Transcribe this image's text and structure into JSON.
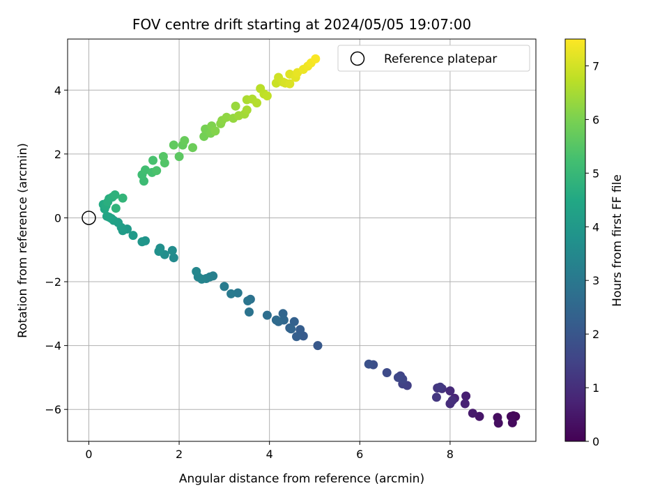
{
  "chart_data": {
    "type": "scatter",
    "title": "FOV centre drift starting at 2024/05/05 19:07:00",
    "xlabel": "Angular distance from reference (arcmin)",
    "ylabel": "Rotation from reference (arcmin)",
    "xlim": [
      -0.47,
      9.9
    ],
    "ylim": [
      -7.0,
      5.6
    ],
    "xticks": [
      0,
      2,
      4,
      6,
      8
    ],
    "yticks": [
      -6,
      -4,
      -2,
      0,
      2,
      4
    ],
    "grid": true,
    "legend": {
      "position": "top-right",
      "entries": [
        "Reference platepar"
      ]
    },
    "reference_point": {
      "label": "Reference platepar",
      "x": 0,
      "y": 0
    },
    "colorbar": {
      "label": "Hours from first FF file",
      "colormap": "viridis",
      "range": [
        0,
        7.5
      ],
      "ticks": [
        0,
        1,
        2,
        3,
        4,
        5,
        6,
        7
      ]
    },
    "series": [
      {
        "points": [
          [
            9.4,
            -6.2,
            0.05
          ],
          [
            9.45,
            -6.22,
            0.1
          ],
          [
            9.35,
            -6.22,
            0.15
          ],
          [
            9.38,
            -6.42,
            0.2
          ],
          [
            9.05,
            -6.25,
            0.25
          ],
          [
            9.07,
            -6.43,
            0.3
          ],
          [
            8.65,
            -6.22,
            0.45
          ],
          [
            8.5,
            -6.12,
            0.55
          ],
          [
            8.35,
            -5.58,
            0.65
          ],
          [
            8.33,
            -5.82,
            0.7
          ],
          [
            8.1,
            -5.65,
            0.8
          ],
          [
            8.0,
            -5.42,
            0.9
          ],
          [
            8.0,
            -5.82,
            0.95
          ],
          [
            8.05,
            -5.72,
            1.0
          ],
          [
            7.82,
            -5.35,
            1.1
          ],
          [
            7.72,
            -5.33,
            1.15
          ],
          [
            7.7,
            -5.62,
            1.2
          ],
          [
            7.78,
            -5.3,
            1.25
          ],
          [
            7.05,
            -5.25,
            1.4
          ],
          [
            6.95,
            -5.2,
            1.45
          ],
          [
            6.9,
            -4.95,
            1.5
          ],
          [
            6.95,
            -5.05,
            1.55
          ],
          [
            6.85,
            -5.0,
            1.6
          ],
          [
            6.6,
            -4.85,
            1.7
          ],
          [
            6.3,
            -4.6,
            1.8
          ],
          [
            6.2,
            -4.58,
            1.85
          ],
          [
            5.07,
            -4.0,
            2.05
          ],
          [
            4.75,
            -3.7,
            2.15
          ],
          [
            4.68,
            -3.5,
            2.2
          ],
          [
            4.6,
            -3.72,
            2.25
          ],
          [
            4.55,
            -3.25,
            2.3
          ],
          [
            4.45,
            -3.45,
            2.35
          ],
          [
            4.48,
            -3.48,
            2.4
          ],
          [
            4.3,
            -3.0,
            2.45
          ],
          [
            4.32,
            -3.2,
            2.5
          ],
          [
            4.2,
            -3.25,
            2.55
          ],
          [
            4.15,
            -3.2,
            2.6
          ],
          [
            3.95,
            -3.05,
            2.7
          ],
          [
            3.58,
            -2.55,
            2.8
          ],
          [
            3.55,
            -2.95,
            2.85
          ],
          [
            3.52,
            -2.6,
            2.9
          ],
          [
            3.3,
            -2.35,
            3.0
          ],
          [
            3.15,
            -2.38,
            3.05
          ],
          [
            3.0,
            -2.15,
            3.1
          ],
          [
            2.75,
            -1.82,
            3.2
          ],
          [
            2.68,
            -1.85,
            3.25
          ],
          [
            2.6,
            -1.9,
            3.3
          ],
          [
            2.5,
            -1.92,
            3.35
          ],
          [
            2.42,
            -1.85,
            3.4
          ],
          [
            2.38,
            -1.68,
            3.45
          ],
          [
            1.88,
            -1.25,
            3.55
          ],
          [
            1.85,
            -1.02,
            3.6
          ],
          [
            1.68,
            -1.15,
            3.65
          ],
          [
            1.58,
            -0.95,
            3.7
          ],
          [
            1.55,
            -1.05,
            3.75
          ],
          [
            1.25,
            -0.72,
            3.85
          ],
          [
            1.18,
            -0.75,
            3.9
          ],
          [
            0.98,
            -0.55,
            4.0
          ],
          [
            0.85,
            -0.35,
            4.05
          ],
          [
            0.75,
            -0.4,
            4.1
          ],
          [
            0.72,
            -0.3,
            4.15
          ],
          [
            0.65,
            -0.15,
            4.2
          ],
          [
            0.55,
            -0.08,
            4.25
          ],
          [
            0.5,
            -0.02,
            4.3
          ],
          [
            0.45,
            0.02,
            4.35
          ],
          [
            0.4,
            0.05,
            4.4
          ],
          [
            0.35,
            0.28,
            4.5
          ],
          [
            0.32,
            0.42,
            4.55
          ],
          [
            0.38,
            0.38,
            4.6
          ],
          [
            0.45,
            0.6,
            4.65
          ],
          [
            0.42,
            0.5,
            4.7
          ],
          [
            0.52,
            0.65,
            4.75
          ],
          [
            0.58,
            0.72,
            4.8
          ],
          [
            0.6,
            0.3,
            4.85
          ],
          [
            0.75,
            0.62,
            4.9
          ],
          [
            1.22,
            1.15,
            5.1
          ],
          [
            1.18,
            1.35,
            5.15
          ],
          [
            1.25,
            1.5,
            5.2
          ],
          [
            1.4,
            1.42,
            5.25
          ],
          [
            1.42,
            1.8,
            5.3
          ],
          [
            1.5,
            1.48,
            5.35
          ],
          [
            1.68,
            1.72,
            5.45
          ],
          [
            1.65,
            1.92,
            5.5
          ],
          [
            2.0,
            1.92,
            5.6
          ],
          [
            1.88,
            2.28,
            5.65
          ],
          [
            2.08,
            2.28,
            5.7
          ],
          [
            2.12,
            2.42,
            5.75
          ],
          [
            2.3,
            2.2,
            5.8
          ],
          [
            2.55,
            2.55,
            5.9
          ],
          [
            2.58,
            2.78,
            5.95
          ],
          [
            2.7,
            2.65,
            6.0
          ],
          [
            2.72,
            2.88,
            6.05
          ],
          [
            2.8,
            2.72,
            6.1
          ],
          [
            2.92,
            2.95,
            6.15
          ],
          [
            2.95,
            3.05,
            6.2
          ],
          [
            3.05,
            3.15,
            6.25
          ],
          [
            3.2,
            3.12,
            6.3
          ],
          [
            3.25,
            3.5,
            6.35
          ],
          [
            3.32,
            3.2,
            6.4
          ],
          [
            3.45,
            3.25,
            6.45
          ],
          [
            3.5,
            3.38,
            6.5
          ],
          [
            3.5,
            3.7,
            6.55
          ],
          [
            3.62,
            3.72,
            6.6
          ],
          [
            3.72,
            3.6,
            6.65
          ],
          [
            3.8,
            4.05,
            6.7
          ],
          [
            3.88,
            3.88,
            6.75
          ],
          [
            3.95,
            3.82,
            6.8
          ],
          [
            4.15,
            4.22,
            6.9
          ],
          [
            4.2,
            4.4,
            6.95
          ],
          [
            4.3,
            4.25,
            7.0
          ],
          [
            4.35,
            4.22,
            7.05
          ],
          [
            4.45,
            4.2,
            7.1
          ],
          [
            4.45,
            4.5,
            7.15
          ],
          [
            4.58,
            4.4,
            7.2
          ],
          [
            4.62,
            4.55,
            7.25
          ],
          [
            4.75,
            4.65,
            7.3
          ],
          [
            4.85,
            4.75,
            7.35
          ],
          [
            4.92,
            4.85,
            7.4
          ],
          [
            5.02,
            4.98,
            7.45
          ]
        ]
      }
    ]
  }
}
